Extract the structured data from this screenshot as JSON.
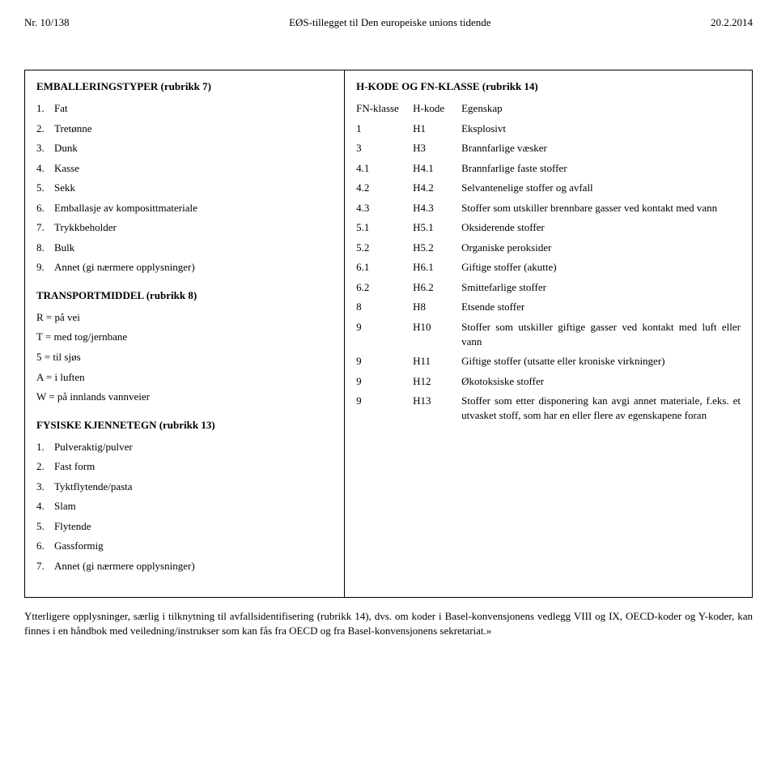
{
  "header": {
    "left": "Nr. 10/138",
    "center": "EØS-tillegget til Den europeiske unions tidende",
    "right": "20.2.2014"
  },
  "left": {
    "sec7": {
      "title": "EMBALLERINGSTYPER (rubrikk 7)",
      "items": [
        "Fat",
        "Tretønne",
        "Dunk",
        "Kasse",
        "Sekk",
        "Emballasje av komposittmateriale",
        "Trykkbeholder",
        "Bulk",
        "Annet (gi nærmere opplysninger)"
      ]
    },
    "sec8": {
      "title": "TRANSPORTMIDDEL (rubrikk 8)",
      "items": [
        "R = på vei",
        "T = med tog/jernbane",
        "5 = til sjøs",
        "A = i luften",
        "W = på innlands vannveier"
      ]
    },
    "sec13": {
      "title": "FYSISKE KJENNETEGN (rubrikk 13)",
      "items": [
        "Pulveraktig/pulver",
        "Fast form",
        "Tyktflytende/pasta",
        "Slam",
        "Flytende",
        "Gassformig",
        "Annet (gi nærmere opplysninger)"
      ]
    }
  },
  "right": {
    "title": "H-KODE OG FN-KLASSE (rubrikk 14)",
    "headers": {
      "c1": "FN-klasse",
      "c2": "H-kode",
      "c3": "Egenskap"
    },
    "rows": [
      {
        "c1": "1",
        "c2": "H1",
        "c3": "Eksplosivt"
      },
      {
        "c1": "3",
        "c2": "H3",
        "c3": "Brannfarlige væsker"
      },
      {
        "c1": "4.1",
        "c2": "H4.1",
        "c3": "Brannfarlige faste stoffer"
      },
      {
        "c1": "4.2",
        "c2": "H4.2",
        "c3": "Selvantenelige stoffer og avfall"
      },
      {
        "c1": "4.3",
        "c2": "H4.3",
        "c3": "Stoffer som utskiller brennbare gasser ved kontakt med vann",
        "j": true
      },
      {
        "c1": "5.1",
        "c2": "H5.1",
        "c3": "Oksiderende stoffer"
      },
      {
        "c1": "5.2",
        "c2": "H5.2",
        "c3": "Organiske peroksider"
      },
      {
        "c1": "6.1",
        "c2": "H6.1",
        "c3": "Giftige stoffer (akutte)"
      },
      {
        "c1": "6.2",
        "c2": "H6.2",
        "c3": "Smittefarlige stoffer"
      },
      {
        "c1": "8",
        "c2": "H8",
        "c3": "Etsende stoffer"
      },
      {
        "c1": "9",
        "c2": "H10",
        "c3": "Stoffer som utskiller giftige gasser ved kontakt med luft eller vann",
        "j": true
      },
      {
        "c1": "9",
        "c2": "H11",
        "c3": "Giftige stoffer (utsatte eller kroniske virkninger)",
        "j": true
      },
      {
        "c1": "9",
        "c2": "H12",
        "c3": "Økotoksiske stoffer"
      },
      {
        "c1": "9",
        "c2": "H13",
        "c3": "Stoffer som etter disponering kan avgi annet materiale, f.eks. et utvasket stoff, som har en eller flere av egenskapene foran",
        "j": true
      }
    ]
  },
  "footer": "Ytterligere opplysninger, særlig i tilknytning til avfallsidentifisering (rubrikk 14), dvs. om koder i Basel-konvensjonens vedlegg VIII og IX, OECD-koder og Y-koder, kan finnes i en håndbok med veiledning/instrukser som kan fås fra OECD og fra Basel-konvensjonens sekretariat.»"
}
